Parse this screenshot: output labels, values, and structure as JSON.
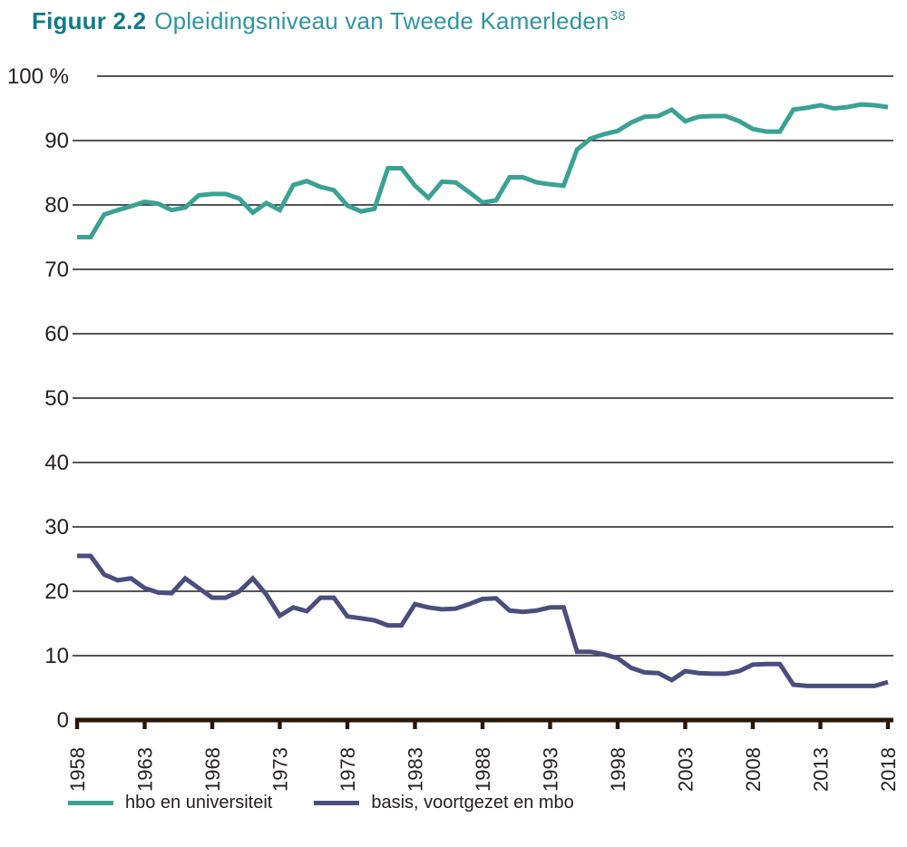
{
  "title": {
    "prefix": "Figuur 2.2",
    "text": "Opleidingsniveau van Tweede Kamerleden",
    "footnote_ref": "38"
  },
  "colors": {
    "title_prefix": "#0d7c89",
    "title_text": "#2d95a2",
    "grid": "#1d1d1b",
    "axis": "#2a1608",
    "tick_text": "#262021",
    "hbo_line": "#3aa294",
    "basis_line": "#4a4e7e"
  },
  "legend": {
    "items": [
      {
        "label": "hbo en universiteit"
      },
      {
        "label": "basis, voortgezet en mbo"
      }
    ]
  },
  "chart_data": {
    "type": "line",
    "title": "Figuur 2.2 Opleidingsniveau van Tweede Kamerleden (38)",
    "xlabel": "",
    "ylabel": "%",
    "ylim": [
      0,
      100
    ],
    "grid": "horizontal",
    "legend_position": "bottom",
    "x_start_year": 1958,
    "x_end_year": 2018,
    "x_tick_years": [
      1958,
      1963,
      1968,
      1973,
      1978,
      1983,
      1988,
      1993,
      1998,
      2003,
      2008,
      2013,
      2018
    ],
    "y_ticks": [
      0,
      10,
      20,
      30,
      40,
      50,
      60,
      70,
      80,
      90,
      100
    ],
    "y_tick_labels": [
      "0",
      "10",
      "20",
      "30",
      "40",
      "50",
      "60",
      "70",
      "80",
      "90",
      "100 %"
    ],
    "series": [
      {
        "name": "hbo en universiteit",
        "color": "#3aa294",
        "values": [
          75,
          75,
          78.5,
          79.2,
          79.8,
          80.5,
          80.2,
          79.2,
          79.6,
          81.5,
          81.7,
          81.7,
          81,
          78.8,
          80.3,
          79.2,
          83.1,
          83.7,
          82.8,
          82.3,
          79.9,
          79,
          79.4,
          85.7,
          85.7,
          83,
          81.1,
          83.6,
          83.5,
          82,
          80.4,
          80.7,
          84.3,
          84.3,
          83.5,
          83.2,
          83,
          88.6,
          90.3,
          91,
          91.5,
          92.8,
          93.7,
          93.8,
          94.8,
          93,
          93.7,
          93.8,
          93.8,
          93,
          91.8,
          91.4,
          91.4,
          94.8,
          95.1,
          95.5,
          95,
          95.2,
          95.6,
          95.5,
          95.2
        ]
      },
      {
        "name": "basis, voortgezet en mbo",
        "color": "#4a4e7e",
        "values": [
          25.5,
          25.5,
          22.6,
          21.7,
          22,
          20.5,
          19.8,
          19.7,
          22,
          20.5,
          19,
          19,
          20,
          22,
          19.5,
          16.2,
          17.5,
          16.9,
          19,
          19,
          16.1,
          15.8,
          15.5,
          14.7,
          14.7,
          18,
          17.5,
          17.2,
          17.3,
          18,
          18.8,
          18.9,
          17,
          16.8,
          17,
          17.5,
          17.5,
          10.6,
          10.6,
          10.2,
          9.6,
          8.1,
          7.4,
          7.3,
          6.2,
          7.6,
          7.3,
          7.2,
          7.2,
          7.6,
          8.6,
          8.7,
          8.7,
          5.5,
          5.3,
          5.3,
          5.3,
          5.3,
          5.3,
          5.3,
          5.9
        ]
      }
    ]
  }
}
